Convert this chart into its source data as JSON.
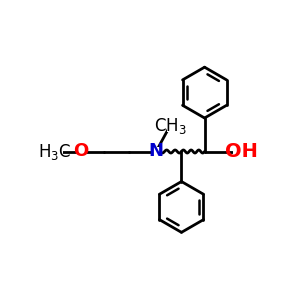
{
  "bg": "#ffffff",
  "lc": "#000000",
  "nc": "#0000cc",
  "oc": "#ff0000",
  "lw": 2.0,
  "lw_inner": 1.8,
  "fs": 12,
  "fss": 9,
  "xlim": [
    0,
    10
  ],
  "ylim": [
    0,
    10
  ],
  "N": [
    5.1,
    5.0
  ],
  "C1": [
    6.2,
    5.0
  ],
  "C2": [
    7.2,
    5.0
  ],
  "OH": [
    8.45,
    5.0
  ],
  "CH3_N": [
    5.7,
    6.1
  ],
  "L1": [
    3.95,
    5.0
  ],
  "L2": [
    2.85,
    5.0
  ],
  "LO": [
    1.85,
    5.0
  ],
  "LCH3": [
    0.75,
    5.0
  ],
  "UR": [
    7.2,
    7.55
  ],
  "Ur": 1.1,
  "LR": [
    6.2,
    2.6
  ],
  "Lr": 1.1
}
